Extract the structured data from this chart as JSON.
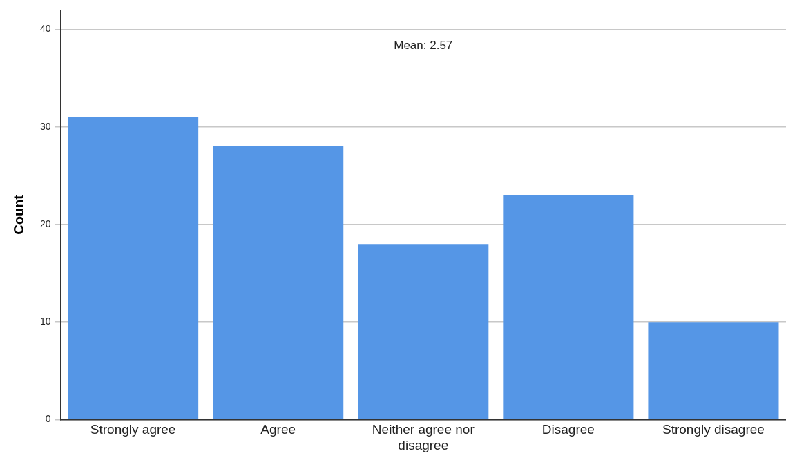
{
  "chart_data": {
    "type": "bar",
    "ylabel": "Count",
    "categories": [
      "Strongly agree",
      "Agree",
      "Neither agree nor disagree",
      "Disagree",
      "Strongly disagree"
    ],
    "values": [
      31,
      28,
      18,
      23,
      10
    ],
    "color": "#5596e6",
    "ylim": [
      0,
      42
    ],
    "yticks": [
      0,
      10,
      20,
      30,
      40
    ],
    "grid": "y",
    "annotations": [
      "Mean: 2.57"
    ]
  }
}
